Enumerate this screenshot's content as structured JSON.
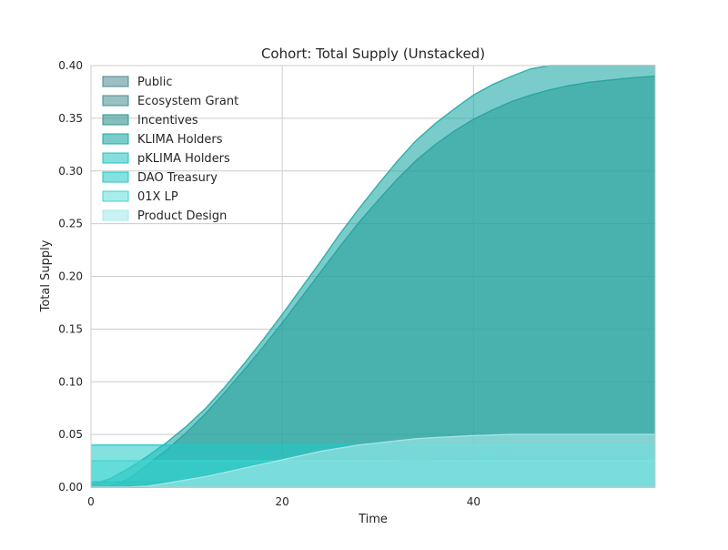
{
  "chart_data": {
    "type": "area",
    "title": "Cohort: Total Supply (Unstacked)",
    "xlabel": "Time",
    "ylabel": "Total Supply",
    "xlim": [
      0,
      59
    ],
    "ylim": [
      0,
      0.4
    ],
    "xticks": [
      0,
      20,
      40
    ],
    "yticks": [
      0,
      0.05,
      0.1,
      0.15,
      0.2,
      0.25,
      0.3,
      0.35,
      0.4
    ],
    "ytick_labels": [
      "0.00",
      "0.05",
      "0.10",
      "0.15",
      "0.20",
      "0.25",
      "0.30",
      "0.35",
      "0.40"
    ],
    "grid": true,
    "legend_position": "top-left",
    "x": [
      0,
      2,
      4,
      6,
      8,
      10,
      12,
      14,
      16,
      18,
      20,
      22,
      24,
      26,
      28,
      30,
      32,
      34,
      36,
      38,
      40,
      42,
      44,
      46,
      48,
      50,
      52,
      54,
      56,
      59
    ],
    "series": [
      {
        "name": "Public",
        "color": "#4d8a8f",
        "opacity": 0.55,
        "values": [
          0.005,
          0.005,
          0.005,
          0.005,
          0.005,
          0.005,
          0.005,
          0.005,
          0.005,
          0.005,
          0.005,
          0.005,
          0.005,
          0.005,
          0.005,
          0.005,
          0.005,
          0.005,
          0.005,
          0.005,
          0.005,
          0.005,
          0.005,
          0.005,
          0.005,
          0.005,
          0.005,
          0.005,
          0.005,
          0.005
        ]
      },
      {
        "name": "Ecosystem Grant",
        "color": "#468d8f",
        "opacity": 0.55,
        "values": [
          0,
          0,
          0,
          0,
          0,
          0,
          0,
          0,
          0,
          0,
          0,
          0,
          0,
          0,
          0,
          0,
          0,
          0,
          0,
          0,
          0,
          0,
          0,
          0,
          0,
          0,
          0,
          0,
          0,
          0
        ]
      },
      {
        "name": "Incentives",
        "color": "#33948f",
        "opacity": 0.6,
        "values": [
          0,
          0.001,
          0.008,
          0.022,
          0.036,
          0.052,
          0.07,
          0.09,
          0.111,
          0.133,
          0.156,
          0.18,
          0.204,
          0.228,
          0.251,
          0.272,
          0.292,
          0.31,
          0.325,
          0.338,
          0.349,
          0.358,
          0.366,
          0.372,
          0.377,
          0.381,
          0.384,
          0.386,
          0.388,
          0.39
        ]
      },
      {
        "name": "KLIMA Holders",
        "color": "#22aaa6",
        "opacity": 0.6,
        "values": [
          0.002,
          0.008,
          0.018,
          0.03,
          0.043,
          0.058,
          0.075,
          0.095,
          0.117,
          0.14,
          0.164,
          0.189,
          0.214,
          0.24,
          0.264,
          0.287,
          0.309,
          0.329,
          0.345,
          0.359,
          0.372,
          0.382,
          0.39,
          0.397,
          0.402,
          0.405,
          0.406,
          0.405,
          0.403,
          0.4
        ]
      },
      {
        "name": "pKLIMA Holders",
        "color": "#22c2c0",
        "opacity": 0.55,
        "values": [
          0,
          0,
          0,
          0,
          0.002,
          0.004,
          0.006,
          0.008,
          0.01,
          0.012,
          0.014,
          0.016,
          0.018,
          0.02,
          0.022,
          0.024,
          0.025,
          0.026,
          0.027,
          0.028,
          0.029,
          0.029,
          0.03,
          0.03,
          0.03,
          0.03,
          0.03,
          0.03,
          0.03,
          0.03
        ]
      },
      {
        "name": "DAO Treasury",
        "color": "#1ec9c7",
        "opacity": 0.55,
        "values": [
          0.04,
          0.04,
          0.04,
          0.04,
          0.04,
          0.04,
          0.04,
          0.04,
          0.04,
          0.04,
          0.04,
          0.04,
          0.04,
          0.04,
          0.04,
          0.04,
          0.04,
          0.04,
          0.04,
          0.04,
          0.04,
          0.04,
          0.04,
          0.04,
          0.04,
          0.04,
          0.04,
          0.04,
          0.04,
          0.04
        ]
      },
      {
        "name": "01X  LP",
        "color": "#3dd6d0",
        "opacity": 0.45,
        "values": [
          0.025,
          0.025,
          0.025,
          0.025,
          0.025,
          0.025,
          0.025,
          0.025,
          0.025,
          0.025,
          0.025,
          0.025,
          0.025,
          0.025,
          0.025,
          0.025,
          0.025,
          0.025,
          0.025,
          0.025,
          0.025,
          0.025,
          0.025,
          0.025,
          0.025,
          0.025,
          0.025,
          0.025,
          0.025,
          0.025
        ]
      },
      {
        "name": "Product Design",
        "color": "#a9e9ea",
        "opacity": 0.6,
        "values": [
          0,
          0,
          0,
          0.001,
          0.004,
          0.007,
          0.01,
          0.014,
          0.018,
          0.022,
          0.026,
          0.03,
          0.034,
          0.037,
          0.04,
          0.042,
          0.044,
          0.046,
          0.047,
          0.048,
          0.049,
          0.0495,
          0.05,
          0.05,
          0.05,
          0.05,
          0.05,
          0.05,
          0.05,
          0.05
        ]
      }
    ]
  }
}
